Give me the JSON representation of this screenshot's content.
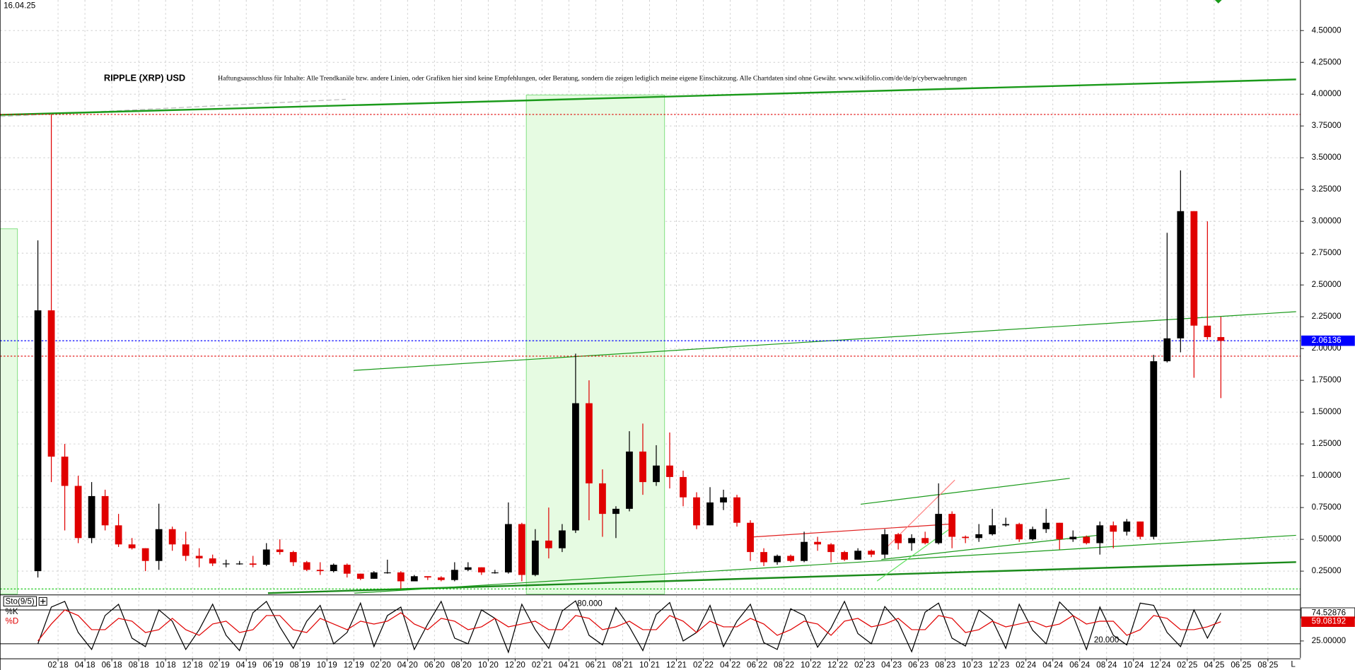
{
  "chart_data": [
    {
      "type": "candlestick",
      "title": "RIPPLE (XRP) USD",
      "subtitle": "Haftungsausschluss für Inhalte: Alle Trendkanäle bzw. andere Linien, oder Grafiken hier sind keine Empfehlungen, oder Beratung, sondern die zeigen lediglich meine eigene Einschätzung. Alle Chartdaten sind ohne Gewähr. www.wikifolio.com/de/de/p/cyberwaehrungen",
      "date": "16.04.25",
      "x": [
        "12 17",
        "01 18",
        "02 18",
        "03 18",
        "04 18",
        "05 18",
        "06 18",
        "07 18",
        "08 18",
        "09 18",
        "10 18",
        "11 18",
        "12 18",
        "01 19",
        "02 19",
        "03 19",
        "04 19",
        "05 19",
        "06 19",
        "07 19",
        "08 19",
        "09 19",
        "10 19",
        "11 19",
        "12 19",
        "01 20",
        "02 20",
        "03 20",
        "04 20",
        "05 20",
        "06 20",
        "07 20",
        "08 20",
        "09 20",
        "10 20",
        "11 20",
        "12 20",
        "01 21",
        "02 21",
        "03 21",
        "04 21",
        "05 21",
        "06 21",
        "07 21",
        "08 21",
        "09 21",
        "10 21",
        "11 21",
        "12 21",
        "01 22",
        "02 22",
        "03 22",
        "04 22",
        "05 22",
        "06 22",
        "07 22",
        "08 22",
        "09 22",
        "10 22",
        "11 22",
        "12 22",
        "01 23",
        "02 23",
        "03 23",
        "04 23",
        "05 23",
        "06 23",
        "07 23",
        "08 23",
        "09 23",
        "10 23",
        "11 23",
        "12 23",
        "01 24",
        "02 24",
        "03 24",
        "04 24",
        "05 24",
        "06 24",
        "07 24",
        "08 24",
        "09 24",
        "10 24",
        "11 24",
        "12 24",
        "01 25",
        "02 25",
        "03 25",
        "04 25"
      ],
      "open": [
        0.25,
        2.3,
        1.15,
        0.92,
        0.51,
        0.84,
        0.61,
        0.46,
        0.43,
        0.33,
        0.58,
        0.46,
        0.37,
        0.35,
        0.31,
        0.31,
        0.31,
        0.3,
        0.42,
        0.4,
        0.32,
        0.26,
        0.25,
        0.3,
        0.23,
        0.19,
        0.24,
        0.24,
        0.17,
        0.21,
        0.2,
        0.18,
        0.26,
        0.28,
        0.24,
        0.24,
        0.62,
        0.22,
        0.49,
        0.43,
        0.57,
        1.57,
        0.94,
        0.7,
        0.74,
        1.19,
        0.95,
        1.08,
        0.99,
        0.83,
        0.61,
        0.79,
        0.83,
        0.63,
        0.4,
        0.32,
        0.37,
        0.33,
        0.48,
        0.46,
        0.4,
        0.34,
        0.41,
        0.38,
        0.54,
        0.47,
        0.51,
        0.47,
        0.7,
        0.52,
        0.51,
        0.54,
        0.61,
        0.62,
        0.5,
        0.58,
        0.63,
        0.5,
        0.52,
        0.47,
        0.61,
        0.56,
        0.64,
        0.52,
        1.9,
        2.08,
        3.08,
        2.18,
        2.09
      ],
      "high": [
        2.85,
        3.84,
        1.25,
        1.0,
        0.95,
        0.89,
        0.7,
        0.51,
        0.43,
        0.78,
        0.6,
        0.56,
        0.43,
        0.38,
        0.34,
        0.33,
        0.37,
        0.47,
        0.5,
        0.41,
        0.33,
        0.32,
        0.31,
        0.31,
        0.23,
        0.25,
        0.34,
        0.25,
        0.22,
        0.21,
        0.21,
        0.32,
        0.32,
        0.28,
        0.26,
        0.79,
        0.63,
        0.58,
        0.75,
        0.62,
        1.96,
        1.75,
        1.05,
        0.76,
        1.35,
        1.41,
        1.24,
        1.34,
        1.04,
        0.87,
        0.91,
        0.89,
        0.85,
        0.65,
        0.43,
        0.38,
        0.38,
        0.56,
        0.52,
        0.47,
        0.41,
        0.43,
        0.42,
        0.58,
        0.55,
        0.54,
        0.56,
        0.94,
        0.72,
        0.53,
        0.62,
        0.74,
        0.67,
        0.63,
        0.6,
        0.74,
        0.63,
        0.57,
        0.53,
        0.64,
        0.64,
        0.66,
        0.64,
        1.95,
        2.91,
        3.4,
        3.08,
        3.0,
        2.25
      ],
      "low": [
        0.2,
        0.95,
        0.57,
        0.47,
        0.47,
        0.57,
        0.44,
        0.42,
        0.25,
        0.26,
        0.41,
        0.33,
        0.28,
        0.29,
        0.28,
        0.3,
        0.28,
        0.29,
        0.38,
        0.29,
        0.25,
        0.22,
        0.24,
        0.2,
        0.18,
        0.19,
        0.23,
        0.11,
        0.17,
        0.18,
        0.17,
        0.17,
        0.25,
        0.22,
        0.23,
        0.23,
        0.17,
        0.21,
        0.35,
        0.4,
        0.55,
        0.65,
        0.52,
        0.51,
        0.72,
        0.85,
        0.92,
        0.9,
        0.76,
        0.58,
        0.61,
        0.73,
        0.6,
        0.33,
        0.29,
        0.3,
        0.32,
        0.32,
        0.41,
        0.32,
        0.33,
        0.34,
        0.36,
        0.35,
        0.42,
        0.41,
        0.46,
        0.46,
        0.43,
        0.47,
        0.48,
        0.53,
        0.6,
        0.48,
        0.49,
        0.55,
        0.42,
        0.48,
        0.46,
        0.38,
        0.43,
        0.53,
        0.5,
        0.5,
        1.89,
        1.97,
        1.77,
        2.07,
        1.61
      ],
      "close": [
        2.3,
        1.15,
        0.92,
        0.51,
        0.84,
        0.61,
        0.46,
        0.43,
        0.33,
        0.58,
        0.46,
        0.37,
        0.35,
        0.31,
        0.31,
        0.31,
        0.3,
        0.42,
        0.4,
        0.32,
        0.26,
        0.25,
        0.3,
        0.23,
        0.19,
        0.24,
        0.24,
        0.17,
        0.21,
        0.2,
        0.18,
        0.26,
        0.28,
        0.24,
        0.24,
        0.62,
        0.22,
        0.49,
        0.43,
        0.57,
        1.57,
        0.94,
        0.7,
        0.74,
        1.19,
        0.95,
        1.08,
        0.99,
        0.83,
        0.61,
        0.79,
        0.83,
        0.63,
        0.4,
        0.32,
        0.37,
        0.33,
        0.48,
        0.46,
        0.4,
        0.34,
        0.41,
        0.38,
        0.54,
        0.47,
        0.51,
        0.47,
        0.7,
        0.52,
        0.51,
        0.54,
        0.61,
        0.62,
        0.5,
        0.58,
        0.63,
        0.5,
        0.52,
        0.47,
        0.61,
        0.56,
        0.64,
        0.52,
        1.9,
        2.08,
        3.08,
        2.18,
        2.09,
        2.06
      ],
      "up_color": "#000000",
      "down_color": "#e00000",
      "ylim": [
        0.07,
        4.74
      ],
      "yticks": [
        {
          "value": 0.25,
          "label": "0.25000"
        },
        {
          "value": 0.5,
          "label": "0.50000"
        },
        {
          "value": 0.75,
          "label": "0.75000"
        },
        {
          "value": 1,
          "label": "1.00000"
        },
        {
          "value": 1.25,
          "label": "1.25000"
        },
        {
          "value": 1.5,
          "label": "1.50000"
        },
        {
          "value": 1.75,
          "label": "1.75000"
        },
        {
          "value": 2,
          "label": "2.00000"
        },
        {
          "value": 2.25,
          "label": "2.25000"
        },
        {
          "value": 2.5,
          "label": "2.50000"
        },
        {
          "value": 2.75,
          "label": "2.75000"
        },
        {
          "value": 3,
          "label": "3.00000"
        },
        {
          "value": 3.25,
          "label": "3.25000"
        },
        {
          "value": 3.5,
          "label": "3.50000"
        },
        {
          "value": 3.75,
          "label": "3.75000"
        },
        {
          "value": 4,
          "label": "4.00000"
        },
        {
          "value": 4.25,
          "label": "4.25000"
        },
        {
          "value": 4.5,
          "label": "4.50000"
        }
      ],
      "grid": true,
      "last_price": 2.06136,
      "last_price_color": "#0000ff",
      "hlines": [
        {
          "value": 3.84,
          "color": "#e00000"
        },
        {
          "value": 1.94,
          "color": "#e00000"
        },
        {
          "value": 0.11,
          "color": "#00c000"
        }
      ]
    },
    {
      "type": "line",
      "indicator": "Sto(9/5)",
      "x": [
        "12 17",
        "01 18",
        "02 18",
        "03 18",
        "04 18",
        "05 18",
        "06 18",
        "07 18",
        "08 18",
        "09 18",
        "10 18",
        "11 18",
        "12 18",
        "01 19",
        "02 19",
        "03 19",
        "04 19",
        "05 19",
        "06 19",
        "07 19",
        "08 19",
        "09 19",
        "10 19",
        "11 19",
        "12 19",
        "01 20",
        "02 20",
        "03 20",
        "04 20",
        "05 20",
        "06 20",
        "07 20",
        "08 20",
        "09 20",
        "10 20",
        "11 20",
        "12 20",
        "01 21",
        "02 21",
        "03 21",
        "04 21",
        "05 21",
        "06 21",
        "07 21",
        "08 21",
        "09 21",
        "10 21",
        "11 21",
        "12 21",
        "01 22",
        "02 22",
        "03 22",
        "04 22",
        "05 22",
        "06 22",
        "07 22",
        "08 22",
        "09 22",
        "10 22",
        "11 22",
        "12 22",
        "01 23",
        "02 23",
        "03 23",
        "04 23",
        "05 23",
        "06 23",
        "07 23",
        "08 23",
        "09 23",
        "10 23",
        "11 23",
        "12 23",
        "01 24",
        "02 24",
        "03 24",
        "04 24",
        "05 24",
        "06 24",
        "07 24",
        "08 24",
        "09 24",
        "10 24",
        "11 24",
        "12 24",
        "01 25",
        "02 25",
        "03 25",
        "04 25"
      ],
      "series": [
        {
          "name": "%K",
          "color": "#000000",
          "values": [
            20,
            85,
            95,
            40,
            10,
            70,
            90,
            30,
            15,
            80,
            60,
            10,
            45,
            90,
            35,
            8,
            75,
            95,
            50,
            12,
            60,
            88,
            20,
            40,
            92,
            15,
            70,
            85,
            10,
            55,
            95,
            30,
            20,
            80,
            65,
            5,
            90,
            45,
            12,
            78,
            96,
            35,
            18,
            84,
            50,
            8,
            72,
            93,
            25,
            40,
            88,
            15,
            60,
            90,
            22,
            10,
            82,
            70,
            14,
            48,
            95,
            38,
            20,
            86,
            58,
            6,
            76,
            92,
            30,
            16,
            80,
            62,
            12,
            90,
            44,
            20,
            94,
            70,
            10,
            85,
            35,
            18,
            92,
            88,
            40,
            15,
            80,
            30,
            74.52876
          ]
        },
        {
          "name": "%D",
          "color": "#e00000",
          "values": [
            25,
            55,
            80,
            70,
            45,
            45,
            65,
            60,
            40,
            45,
            65,
            45,
            35,
            55,
            60,
            40,
            45,
            70,
            70,
            45,
            40,
            65,
            55,
            45,
            60,
            55,
            60,
            75,
            55,
            45,
            65,
            60,
            45,
            50,
            65,
            50,
            55,
            60,
            45,
            45,
            70,
            65,
            45,
            50,
            60,
            45,
            45,
            70,
            60,
            40,
            60,
            50,
            50,
            65,
            55,
            35,
            45,
            60,
            55,
            35,
            60,
            65,
            50,
            55,
            65,
            45,
            45,
            70,
            65,
            40,
            45,
            60,
            50,
            55,
            60,
            50,
            55,
            70,
            55,
            60,
            60,
            35,
            45,
            70,
            65,
            45,
            45,
            50,
            59.08192
          ]
        }
      ],
      "ylim": [
        -5,
        102
      ],
      "yticks": [
        {
          "value": 25,
          "label": "25.00000"
        }
      ],
      "levels": [
        {
          "value": 80,
          "label": "80.000"
        },
        {
          "value": 20,
          "label": "20.000"
        }
      ],
      "xticks": [
        "02 18",
        "04 18",
        "06 18",
        "08 18",
        "10 18",
        "12 18",
        "02 19",
        "04 19",
        "06 19",
        "08 19",
        "10 19",
        "12 19",
        "02 20",
        "04 20",
        "06 20",
        "08 20",
        "10 20",
        "12 20",
        "02 21",
        "04 21",
        "06 21",
        "08 21",
        "10 21",
        "12 21",
        "02 22",
        "04 22",
        "06 22",
        "08 22",
        "10 22",
        "12 22",
        "02 23",
        "04 23",
        "06 23",
        "08 23",
        "10 23",
        "12 23",
        "02 24",
        "04 24",
        "06 24",
        "08 24",
        "10 24",
        "12 24",
        "02 25",
        "04 25",
        "06 25",
        "08 25"
      ],
      "axis_end_label": "L"
    }
  ]
}
